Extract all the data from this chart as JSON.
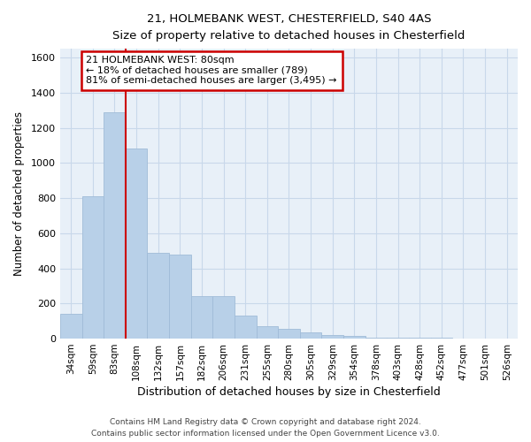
{
  "title1": "21, HOLMEBANK WEST, CHESTERFIELD, S40 4AS",
  "title2": "Size of property relative to detached houses in Chesterfield",
  "xlabel": "Distribution of detached houses by size in Chesterfield",
  "ylabel": "Number of detached properties",
  "categories": [
    "34sqm",
    "59sqm",
    "83sqm",
    "108sqm",
    "132sqm",
    "157sqm",
    "182sqm",
    "206sqm",
    "231sqm",
    "255sqm",
    "280sqm",
    "305sqm",
    "329sqm",
    "354sqm",
    "378sqm",
    "403sqm",
    "428sqm",
    "452sqm",
    "477sqm",
    "501sqm",
    "526sqm"
  ],
  "values": [
    140,
    810,
    1290,
    1080,
    490,
    480,
    240,
    240,
    130,
    70,
    55,
    35,
    20,
    15,
    5,
    5,
    3,
    3,
    2,
    2,
    2
  ],
  "bar_color": "#b8d0e8",
  "bar_edge_color": "#a0bcd8",
  "grid_color": "#c8d8ea",
  "background_color": "#e8f0f8",
  "vline_x_index": 2,
  "vline_color": "#cc0000",
  "annotation_text": "21 HOLMEBANK WEST: 80sqm\n← 18% of detached houses are smaller (789)\n81% of semi-detached houses are larger (3,495) →",
  "annotation_box_color": "#ffffff",
  "annotation_box_edge": "#cc0000",
  "ylim": [
    0,
    1650
  ],
  "yticks": [
    0,
    200,
    400,
    600,
    800,
    1000,
    1200,
    1400,
    1600
  ],
  "footer1": "Contains HM Land Registry data © Crown copyright and database right 2024.",
  "footer2": "Contains public sector information licensed under the Open Government Licence v3.0."
}
